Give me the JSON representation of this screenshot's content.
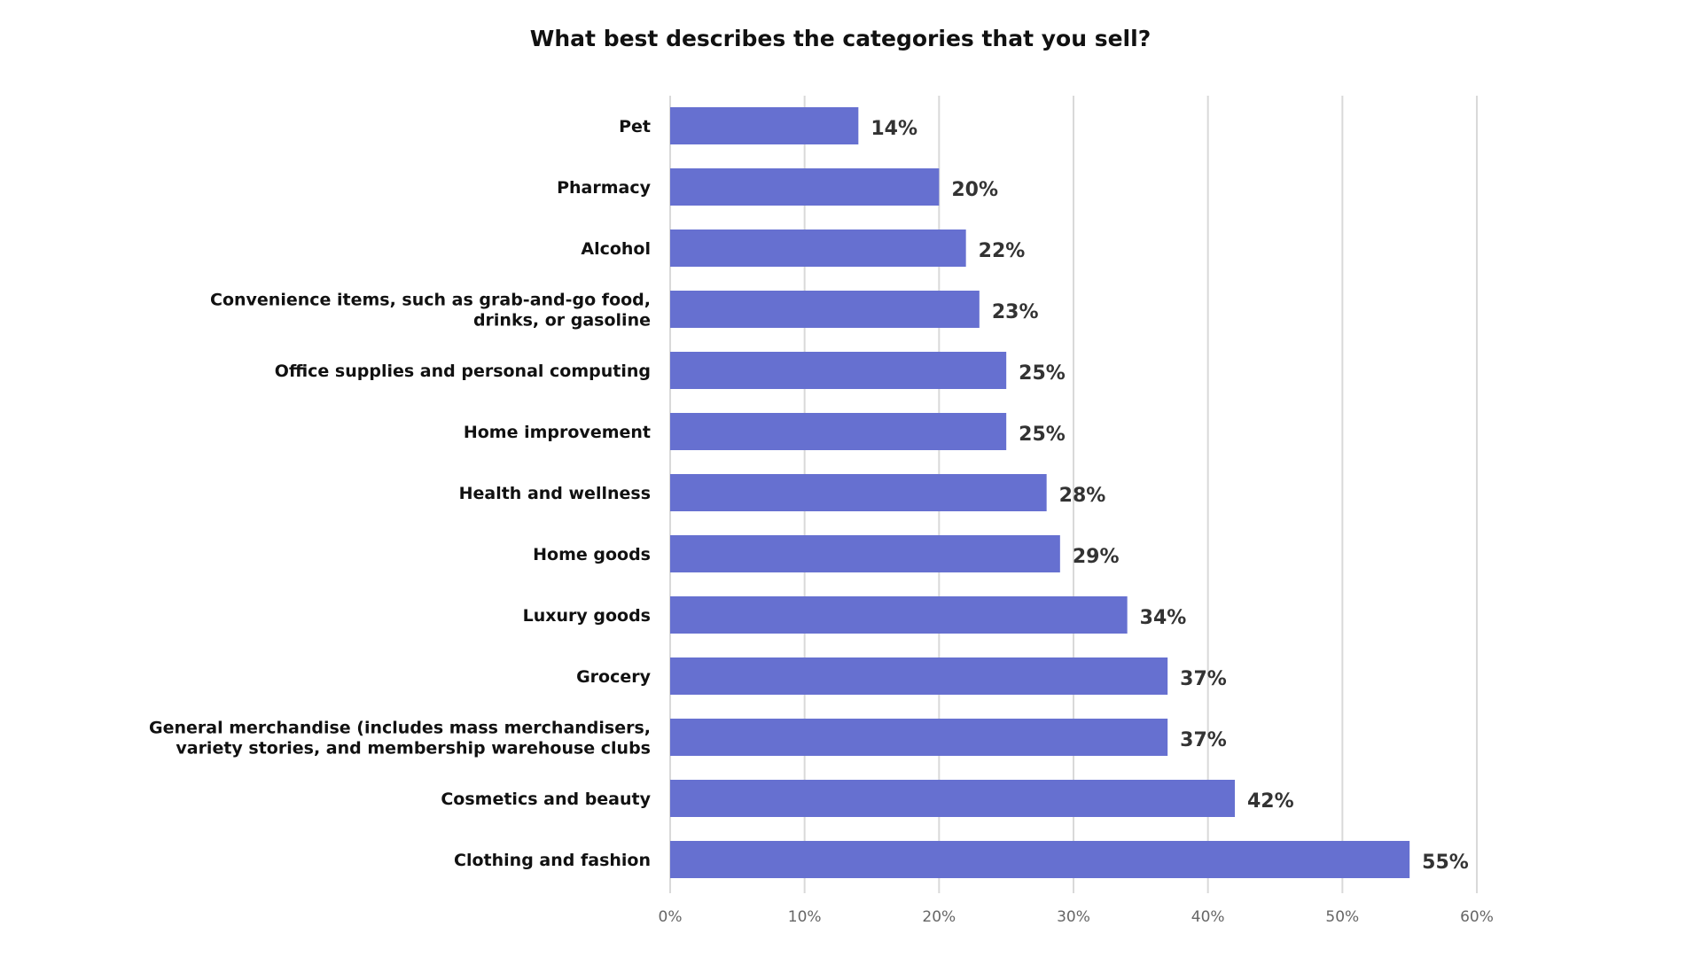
{
  "chart_data": {
    "type": "bar",
    "orientation": "horizontal",
    "title": "What best describes the categories that you sell?",
    "xlabel": "",
    "ylabel": "",
    "xlim": [
      0,
      60
    ],
    "x_ticks": [
      "0%",
      "10%",
      "20%",
      "30%",
      "40%",
      "50%",
      "60%"
    ],
    "grid": "vertical",
    "legend": "none",
    "bar_color": "#6670d0",
    "categories": [
      [
        "Pet"
      ],
      [
        "Pharmacy"
      ],
      [
        "Alcohol"
      ],
      [
        "Convenience items, such as grab-and-go food,",
        "drinks, or gasoline"
      ],
      [
        "Office supplies and personal computing"
      ],
      [
        "Home improvement"
      ],
      [
        "Health and wellness"
      ],
      [
        "Home goods"
      ],
      [
        "Luxury goods"
      ],
      [
        "Grocery"
      ],
      [
        "General merchandise (includes mass merchandisers,",
        "variety stories, and membership warehouse clubs"
      ],
      [
        "Cosmetics and beauty"
      ],
      [
        "Clothing and fashion"
      ]
    ],
    "values": [
      14,
      20,
      22,
      23,
      25,
      25,
      28,
      29,
      34,
      37,
      37,
      42,
      55
    ],
    "data_labels": [
      "14%",
      "20%",
      "22%",
      "23%",
      "25%",
      "25%",
      "28%",
      "29%",
      "34%",
      "37%",
      "37%",
      "42%",
      "55%"
    ]
  }
}
